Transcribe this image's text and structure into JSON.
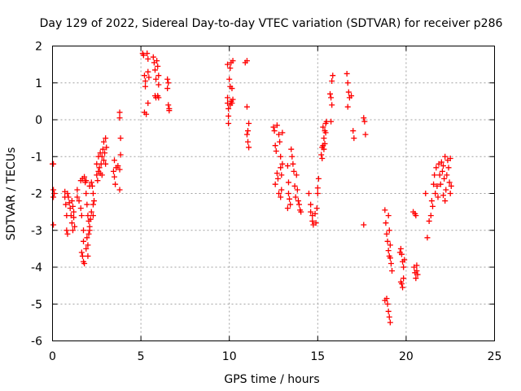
{
  "chart_data": {
    "type": "scatter",
    "title": "Day 129 of 2022, Sidereal Day-to-day VTEC variation (SDTVAR) for receiver p286",
    "xlabel": "GPS time / hours",
    "ylabel": "SDTVAR / TECUs",
    "xlim": [
      0,
      25
    ],
    "ylim": [
      -6,
      2
    ],
    "xticks": [
      0,
      5,
      10,
      15,
      20,
      25
    ],
    "xtick_labels": [
      "0",
      "5",
      "10",
      "15",
      "20",
      "25"
    ],
    "yticks": [
      -6,
      -5,
      -4,
      -3,
      -2,
      -1,
      0,
      1,
      2
    ],
    "ytick_labels": [
      "-6",
      "-5",
      "-4",
      "-3",
      "-2",
      "-1",
      "0",
      "1",
      "2"
    ],
    "grid": true,
    "marker": "+",
    "series": [
      {
        "name": "SDTVAR",
        "color": "#ff0000",
        "points": [
          [
            0.0,
            -1.2
          ],
          [
            0.05,
            -1.2
          ],
          [
            0.05,
            -1.9
          ],
          [
            0.05,
            -2.1
          ],
          [
            0.1,
            -2.0
          ],
          [
            0.05,
            -2.85
          ],
          [
            0.7,
            -1.95
          ],
          [
            0.7,
            -2.1
          ],
          [
            0.75,
            -2.3
          ],
          [
            0.8,
            -2.6
          ],
          [
            0.8,
            -3.0
          ],
          [
            0.85,
            -3.1
          ],
          [
            0.85,
            -2.0
          ],
          [
            0.9,
            -2.1
          ],
          [
            0.95,
            -2.25
          ],
          [
            1.0,
            -2.4
          ],
          [
            1.05,
            -2.6
          ],
          [
            1.1,
            -2.8
          ],
          [
            1.1,
            -2.2
          ],
          [
            1.15,
            -2.35
          ],
          [
            1.2,
            -2.5
          ],
          [
            1.2,
            -2.65
          ],
          [
            1.25,
            -2.9
          ],
          [
            1.15,
            -3.0
          ],
          [
            1.4,
            -1.9
          ],
          [
            1.4,
            -2.1
          ],
          [
            1.5,
            -2.2
          ],
          [
            1.6,
            -1.65
          ],
          [
            1.6,
            -2.4
          ],
          [
            1.65,
            -2.6
          ],
          [
            1.65,
            -3.6
          ],
          [
            1.7,
            -3.7
          ],
          [
            1.75,
            -3.0
          ],
          [
            1.75,
            -3.3
          ],
          [
            1.75,
            -3.85
          ],
          [
            1.8,
            -3.9
          ],
          [
            1.7,
            -1.6
          ],
          [
            1.8,
            -1.55
          ],
          [
            1.85,
            -1.7
          ],
          [
            1.9,
            -1.65
          ],
          [
            1.9,
            -3.5
          ],
          [
            1.95,
            -3.2
          ],
          [
            1.9,
            -2.0
          ],
          [
            1.95,
            -2.3
          ],
          [
            2.0,
            -2.6
          ],
          [
            2.05,
            -2.75
          ],
          [
            2.1,
            -1.8
          ],
          [
            2.1,
            -3.0
          ],
          [
            2.0,
            -3.7
          ],
          [
            2.0,
            -3.4
          ],
          [
            2.05,
            -3.1
          ],
          [
            2.1,
            -2.9
          ],
          [
            2.15,
            -2.7
          ],
          [
            2.2,
            -2.5
          ],
          [
            2.2,
            -1.7
          ],
          [
            2.25,
            -1.8
          ],
          [
            2.3,
            -2.0
          ],
          [
            2.3,
            -2.3
          ],
          [
            2.3,
            -2.6
          ],
          [
            2.35,
            -2.2
          ],
          [
            2.5,
            -1.2
          ],
          [
            2.5,
            -1.5
          ],
          [
            2.55,
            -1.65
          ],
          [
            2.6,
            -1.0
          ],
          [
            2.6,
            -1.4
          ],
          [
            2.65,
            -1.3
          ],
          [
            2.7,
            -0.9
          ],
          [
            2.7,
            -1.45
          ],
          [
            2.75,
            -1.2
          ],
          [
            2.8,
            -1.0
          ],
          [
            2.8,
            -1.5
          ],
          [
            2.85,
            -0.8
          ],
          [
            2.9,
            -1.1
          ],
          [
            2.9,
            -0.6
          ],
          [
            2.95,
            -0.9
          ],
          [
            3.0,
            -0.5
          ],
          [
            3.0,
            -1.2
          ],
          [
            3.05,
            -0.75
          ],
          [
            3.5,
            -1.1
          ],
          [
            3.5,
            -1.55
          ],
          [
            3.6,
            -1.3
          ],
          [
            3.55,
            -1.75
          ],
          [
            3.7,
            -1.25
          ],
          [
            3.45,
            -1.4
          ],
          [
            3.8,
            0.2
          ],
          [
            3.8,
            0.05
          ],
          [
            3.85,
            -0.5
          ],
          [
            3.85,
            -0.95
          ],
          [
            3.8,
            -1.35
          ],
          [
            3.8,
            -1.9
          ],
          [
            5.1,
            1.8
          ],
          [
            5.15,
            1.75
          ],
          [
            5.2,
            1.2
          ],
          [
            5.25,
            1.05
          ],
          [
            5.25,
            0.9
          ],
          [
            5.2,
            0.2
          ],
          [
            5.35,
            1.8
          ],
          [
            5.4,
            1.65
          ],
          [
            5.4,
            1.3
          ],
          [
            5.45,
            1.15
          ],
          [
            5.4,
            0.45
          ],
          [
            5.3,
            0.15
          ],
          [
            5.7,
            1.7
          ],
          [
            5.75,
            1.55
          ],
          [
            5.8,
            1.35
          ],
          [
            5.85,
            1.1
          ],
          [
            5.8,
            0.65
          ],
          [
            5.85,
            0.6
          ],
          [
            5.9,
            1.6
          ],
          [
            5.95,
            1.45
          ],
          [
            6.0,
            1.2
          ],
          [
            6.0,
            0.95
          ],
          [
            6.0,
            0.6
          ],
          [
            5.95,
            0.65
          ],
          [
            6.5,
            1.1
          ],
          [
            6.5,
            0.85
          ],
          [
            6.55,
            0.4
          ],
          [
            6.6,
            0.3
          ],
          [
            6.55,
            1.0
          ],
          [
            6.6,
            0.25
          ],
          [
            9.9,
            1.5
          ],
          [
            9.9,
            0.6
          ],
          [
            9.95,
            0.3
          ],
          [
            9.95,
            0.1
          ],
          [
            9.95,
            -0.1
          ],
          [
            9.9,
            0.45
          ],
          [
            10.0,
            1.1
          ],
          [
            10.05,
            0.9
          ],
          [
            10.05,
            1.4
          ],
          [
            10.1,
            1.55
          ],
          [
            10.1,
            0.5
          ],
          [
            10.15,
            0.45
          ],
          [
            10.2,
            1.6
          ],
          [
            10.15,
            0.85
          ],
          [
            10.05,
            0.4
          ],
          [
            10.2,
            0.55
          ],
          [
            10.9,
            1.55
          ],
          [
            11.0,
            1.6
          ],
          [
            11.0,
            0.35
          ],
          [
            11.05,
            -0.3
          ],
          [
            11.05,
            -0.6
          ],
          [
            11.1,
            -0.75
          ],
          [
            11.0,
            -0.4
          ],
          [
            11.1,
            -0.1
          ],
          [
            12.5,
            -0.2
          ],
          [
            12.55,
            -0.3
          ],
          [
            12.6,
            -0.7
          ],
          [
            12.65,
            -0.85
          ],
          [
            12.7,
            -1.45
          ],
          [
            12.75,
            -1.6
          ],
          [
            12.7,
            -0.15
          ],
          [
            12.8,
            -0.4
          ],
          [
            12.85,
            -0.6
          ],
          [
            12.9,
            -1.0
          ],
          [
            12.9,
            -1.3
          ],
          [
            12.95,
            -1.5
          ],
          [
            12.8,
            -2.0
          ],
          [
            12.9,
            -2.1
          ],
          [
            12.95,
            -1.9
          ],
          [
            13.0,
            -1.2
          ],
          [
            13.0,
            -0.35
          ],
          [
            12.6,
            -1.75
          ],
          [
            13.3,
            -1.25
          ],
          [
            13.35,
            -1.7
          ],
          [
            13.35,
            -2.0
          ],
          [
            13.4,
            -2.15
          ],
          [
            13.45,
            -2.3
          ],
          [
            13.3,
            -2.4
          ],
          [
            13.5,
            -0.8
          ],
          [
            13.55,
            -1.0
          ],
          [
            13.6,
            -1.2
          ],
          [
            13.65,
            -1.4
          ],
          [
            13.7,
            -1.8
          ],
          [
            13.75,
            -2.1
          ],
          [
            13.8,
            -1.5
          ],
          [
            13.85,
            -1.9
          ],
          [
            13.9,
            -2.2
          ],
          [
            13.95,
            -2.3
          ],
          [
            14.0,
            -2.45
          ],
          [
            14.05,
            -2.5
          ],
          [
            14.5,
            -2.0
          ],
          [
            14.6,
            -2.3
          ],
          [
            14.6,
            -2.5
          ],
          [
            14.7,
            -2.75
          ],
          [
            14.75,
            -2.85
          ],
          [
            14.7,
            -2.6
          ],
          [
            14.85,
            -2.55
          ],
          [
            14.9,
            -2.8
          ],
          [
            14.95,
            -2.4
          ],
          [
            15.0,
            -1.85
          ],
          [
            15.05,
            -1.6
          ],
          [
            15.0,
            -2.0
          ],
          [
            15.2,
            -0.95
          ],
          [
            15.25,
            -1.05
          ],
          [
            15.3,
            -0.7
          ],
          [
            15.35,
            -0.5
          ],
          [
            15.4,
            -0.3
          ],
          [
            15.45,
            -0.1
          ],
          [
            15.3,
            -0.2
          ],
          [
            15.35,
            -0.8
          ],
          [
            15.5,
            -0.05
          ],
          [
            15.45,
            -0.35
          ],
          [
            15.4,
            -0.65
          ],
          [
            15.25,
            -0.75
          ],
          [
            15.7,
            0.7
          ],
          [
            15.75,
            0.6
          ],
          [
            15.8,
            1.05
          ],
          [
            15.85,
            1.2
          ],
          [
            15.8,
            0.4
          ],
          [
            15.75,
            -0.05
          ],
          [
            16.65,
            1.25
          ],
          [
            16.7,
            1.0
          ],
          [
            16.75,
            0.75
          ],
          [
            16.8,
            0.6
          ],
          [
            16.7,
            0.35
          ],
          [
            16.9,
            0.65
          ],
          [
            17.0,
            -0.3
          ],
          [
            17.05,
            -0.5
          ],
          [
            17.6,
            0.05
          ],
          [
            17.65,
            -0.05
          ],
          [
            17.7,
            -0.4
          ],
          [
            17.6,
            -2.85
          ],
          [
            18.8,
            -2.45
          ],
          [
            18.85,
            -2.8
          ],
          [
            18.9,
            -3.1
          ],
          [
            18.95,
            -3.3
          ],
          [
            19.0,
            -3.55
          ],
          [
            19.05,
            -3.7
          ],
          [
            19.0,
            -2.6
          ],
          [
            19.05,
            -3.0
          ],
          [
            19.1,
            -3.4
          ],
          [
            19.15,
            -3.9
          ],
          [
            19.2,
            -4.1
          ],
          [
            19.1,
            -3.75
          ],
          [
            18.8,
            -4.9
          ],
          [
            18.9,
            -4.85
          ],
          [
            18.95,
            -5.0
          ],
          [
            19.0,
            -5.2
          ],
          [
            19.05,
            -5.35
          ],
          [
            19.1,
            -5.5
          ],
          [
            19.7,
            -3.5
          ],
          [
            19.75,
            -3.65
          ],
          [
            19.8,
            -3.85
          ],
          [
            19.85,
            -4.0
          ],
          [
            19.75,
            -4.45
          ],
          [
            19.8,
            -4.55
          ],
          [
            19.65,
            -3.6
          ],
          [
            19.7,
            -4.4
          ],
          [
            19.9,
            -3.8
          ],
          [
            19.85,
            -4.3
          ],
          [
            20.4,
            -2.5
          ],
          [
            20.5,
            -2.55
          ],
          [
            20.55,
            -2.6
          ],
          [
            20.45,
            -4.0
          ],
          [
            20.5,
            -4.15
          ],
          [
            20.55,
            -4.3
          ],
          [
            20.6,
            -3.95
          ],
          [
            20.6,
            -4.1
          ],
          [
            20.65,
            -4.2
          ],
          [
            21.1,
            -2.0
          ],
          [
            21.2,
            -3.2
          ],
          [
            21.3,
            -2.75
          ],
          [
            21.4,
            -2.6
          ],
          [
            21.45,
            -2.2
          ],
          [
            21.5,
            -2.35
          ],
          [
            21.55,
            -1.75
          ],
          [
            21.6,
            -1.5
          ],
          [
            21.65,
            -2.0
          ],
          [
            21.7,
            -1.3
          ],
          [
            21.75,
            -1.8
          ],
          [
            21.8,
            -2.1
          ],
          [
            21.85,
            -1.2
          ],
          [
            21.9,
            -1.5
          ],
          [
            21.95,
            -1.75
          ],
          [
            22.0,
            -1.15
          ],
          [
            22.05,
            -1.4
          ],
          [
            22.1,
            -2.05
          ],
          [
            22.1,
            -1.25
          ],
          [
            22.15,
            -1.6
          ],
          [
            22.2,
            -1.0
          ],
          [
            22.2,
            -2.2
          ],
          [
            22.25,
            -1.9
          ],
          [
            22.3,
            -1.5
          ],
          [
            22.35,
            -1.1
          ],
          [
            22.4,
            -1.3
          ],
          [
            22.45,
            -1.7
          ],
          [
            22.5,
            -2.0
          ],
          [
            22.5,
            -1.05
          ],
          [
            22.55,
            -1.8
          ]
        ]
      }
    ]
  }
}
